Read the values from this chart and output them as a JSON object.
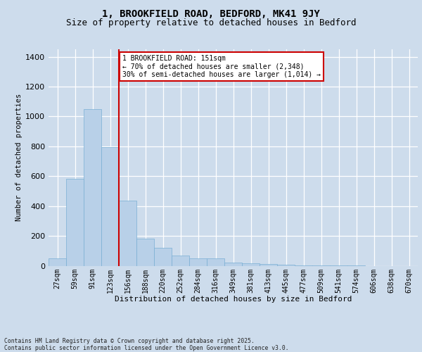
{
  "title1": "1, BROOKFIELD ROAD, BEDFORD, MK41 9JY",
  "title2": "Size of property relative to detached houses in Bedford",
  "xlabel": "Distribution of detached houses by size in Bedford",
  "ylabel": "Number of detached properties",
  "categories": [
    "27sqm",
    "59sqm",
    "91sqm",
    "123sqm",
    "156sqm",
    "188sqm",
    "220sqm",
    "252sqm",
    "284sqm",
    "316sqm",
    "349sqm",
    "381sqm",
    "413sqm",
    "445sqm",
    "477sqm",
    "509sqm",
    "541sqm",
    "574sqm",
    "606sqm",
    "638sqm",
    "670sqm"
  ],
  "values": [
    48,
    583,
    1047,
    795,
    435,
    183,
    120,
    70,
    48,
    48,
    20,
    18,
    10,
    5,
    3,
    2,
    1,
    1,
    0,
    0,
    0
  ],
  "bar_color": "#b8d0e8",
  "bar_edge_color": "#7aafd4",
  "vline_index": 4,
  "vline_color": "#cc0000",
  "annotation_text": "1 BROOKFIELD ROAD: 151sqm\n← 70% of detached houses are smaller (2,348)\n30% of semi-detached houses are larger (1,014) →",
  "annotation_box_facecolor": "#ffffff",
  "annotation_box_edgecolor": "#cc0000",
  "ylim_max": 1450,
  "bg_color": "#cddcec",
  "footer": "Contains HM Land Registry data © Crown copyright and database right 2025.\nContains public sector information licensed under the Open Government Licence v3.0."
}
